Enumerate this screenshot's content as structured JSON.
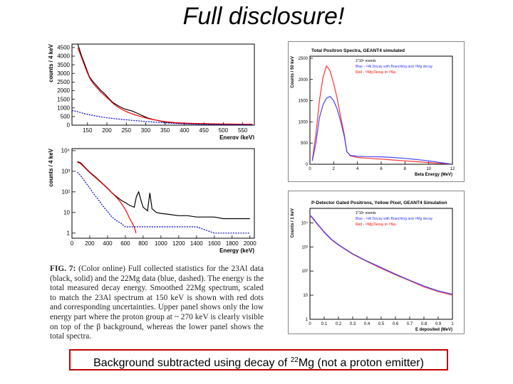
{
  "slide": {
    "title": "Full disclosure!",
    "caption": {
      "fig_label": "FIG. 7:",
      "text": "(Color online) Full collected statistics for the 23Al data (black, solid) and the 22Mg data (blue, dashed). The energy is the total measured decay energy. Smoothed 22Mg spectrum, scaled to match the 23Al spectrum at 150 keV is shown with red dots and corresponding uncertainties. Upper panel shows only the low energy part where the proton group at ~ 270 keV is clearly visible on top of the β background, whereas the lower panel shows the total spectra."
    },
    "banner": {
      "before": "Background subtracted using decay of ",
      "sup": "22",
      "after": "Mg (not a proton emitter)"
    }
  },
  "chart_data": [
    {
      "type": "line",
      "xlabel": "Energy (keV)",
      "ylabel": "counts / 4 keV",
      "xlim": [
        110,
        580
      ],
      "ylim": [
        0,
        4700
      ],
      "xticks": [
        150,
        200,
        250,
        300,
        350,
        400,
        450,
        500,
        550
      ],
      "yticks": [
        0,
        500,
        1000,
        1500,
        2000,
        2500,
        3000,
        3500,
        4000,
        4500
      ],
      "series": [
        {
          "color": "#000000",
          "x": [
            125,
            135,
            145,
            155,
            165,
            175,
            185,
            195,
            205,
            215,
            225,
            235,
            245,
            255,
            265,
            275,
            285,
            295,
            305,
            315,
            325,
            335,
            345,
            355,
            375,
            400,
            425,
            450,
            475,
            500,
            525,
            550,
            575
          ],
          "y": [
            4700,
            4000,
            3400,
            2800,
            2500,
            2250,
            2000,
            1800,
            1550,
            1320,
            1180,
            1050,
            950,
            880,
            820,
            720,
            620,
            520,
            420,
            350,
            300,
            250,
            200,
            170,
            130,
            100,
            80,
            70,
            60,
            55,
            50,
            45,
            40
          ]
        },
        {
          "color": "#ff0000",
          "x": [
            125,
            135,
            145,
            155,
            165,
            175,
            185,
            195,
            205,
            215,
            225,
            235,
            245,
            255,
            265,
            275,
            285,
            295,
            305,
            315,
            325,
            335,
            345,
            355,
            375,
            400,
            425,
            450,
            475,
            500,
            525,
            550,
            575
          ],
          "y": [
            4500,
            3900,
            3300,
            2750,
            2400,
            2150,
            1900,
            1700,
            1500,
            1280,
            1100,
            960,
            840,
            740,
            660,
            580,
            510,
            450,
            390,
            340,
            300,
            260,
            220,
            190,
            150,
            120,
            100,
            90,
            80,
            70,
            60,
            50,
            45
          ]
        },
        {
          "color": "#0000cc",
          "x": [
            110,
            125,
            140,
            155,
            170,
            185,
            200,
            220,
            240,
            260,
            280,
            300,
            320,
            340,
            360,
            400,
            450,
            500,
            550,
            575
          ],
          "y": [
            850,
            780,
            680,
            600,
            540,
            480,
            430,
            380,
            330,
            290,
            250,
            210,
            180,
            150,
            120,
            80,
            50,
            30,
            20,
            15
          ]
        }
      ]
    },
    {
      "type": "line",
      "xlabel": "Energy (keV)",
      "ylabel": "counts / 4 keV",
      "ylog": true,
      "xlim": [
        0,
        2050
      ],
      "ylim_log10": [
        -0.25,
        4.1
      ],
      "xticks": [
        0,
        200,
        400,
        600,
        800,
        1000,
        1200,
        1400,
        1600,
        1800,
        2000
      ],
      "ytick_labels": [
        "1",
        "10",
        "10²",
        "10³",
        "10⁴"
      ],
      "series": [
        {
          "color": "#000000",
          "x": [
            60,
            100,
            150,
            200,
            250,
            300,
            350,
            400,
            450,
            500,
            550,
            600,
            650,
            700,
            725,
            750,
            775,
            800,
            850,
            875,
            900,
            950,
            1000,
            1100,
            1200,
            1300,
            1400,
            1500,
            1600,
            1700,
            1800,
            1900,
            2000
          ],
          "y": [
            3000,
            2500,
            1500,
            900,
            600,
            380,
            240,
            150,
            90,
            60,
            40,
            30,
            22,
            18,
            60,
            100,
            40,
            18,
            12,
            90,
            15,
            10,
            9,
            8,
            7,
            7,
            6,
            6,
            6,
            5,
            5,
            5,
            5
          ]
        },
        {
          "color": "#ff0000",
          "x": [
            60,
            100,
            150,
            200,
            250,
            300,
            350,
            400,
            450,
            500,
            550,
            600,
            650,
            700,
            720
          ],
          "y": [
            2800,
            2300,
            1400,
            850,
            560,
            360,
            230,
            145,
            88,
            55,
            30,
            14,
            5,
            2,
            1
          ]
        },
        {
          "color": "#0000cc",
          "x": [
            60,
            100,
            150,
            200,
            250,
            300,
            350,
            400,
            450,
            500,
            550,
            600,
            700,
            800,
            1000,
            1200,
            1400,
            1600,
            1800,
            2000
          ],
          "y": [
            900,
            600,
            300,
            150,
            75,
            40,
            20,
            11,
            6,
            4,
            3,
            2,
            2,
            2,
            2,
            2,
            2,
            1,
            1,
            1
          ]
        }
      ]
    },
    {
      "type": "line",
      "title": "Total Positron Spectra, GEANT4 simulated",
      "xlabel": "Beta Energy (MeV)",
      "ylabel": "Counts / 50 keV",
      "xlim": [
        0,
        12
      ],
      "ylim": [
        0,
        2550
      ],
      "xticks": [
        0,
        2,
        4,
        6,
        8,
        10,
        12
      ],
      "yticks": [
        0,
        500,
        1000,
        1500,
        2000,
        2500
      ],
      "legend": {
        "position": "top-right",
        "entries": [
          "1*10⁵ events",
          "Blue - ²²Al Decay with Branching and ²²Mg decay",
          "Red - ²²Mg Decay to ²²Na"
        ]
      },
      "series": [
        {
          "color": "#ff3333",
          "x": [
            0.2,
            0.5,
            0.8,
            1.1,
            1.4,
            1.7,
            2.0,
            2.3,
            2.6,
            2.9,
            3.1,
            3.4,
            4,
            5,
            6,
            7,
            8,
            9,
            10,
            11,
            11.8
          ],
          "y": [
            100,
            700,
            1500,
            2050,
            2320,
            2200,
            1900,
            1550,
            1100,
            700,
            300,
            200,
            160,
            140,
            120,
            100,
            80,
            60,
            40,
            20,
            5
          ]
        },
        {
          "color": "#4444ff",
          "x": [
            0.2,
            0.5,
            0.8,
            1.1,
            1.4,
            1.7,
            2.0,
            2.3,
            2.6,
            2.9,
            3.1,
            3.4,
            4,
            5,
            6,
            7,
            8,
            9,
            10,
            11,
            11.8
          ],
          "y": [
            80,
            500,
            1100,
            1400,
            1560,
            1600,
            1500,
            1300,
            1000,
            650,
            300,
            210,
            190,
            180,
            175,
            160,
            140,
            110,
            80,
            40,
            10
          ]
        }
      ]
    },
    {
      "type": "line",
      "title": "P-Detector Gated Positrons, Yellow Pixel, GEANT4 Simulation",
      "xlabel": "E deposited (MeV)",
      "ylabel": "Counts / 1 keV",
      "ylog": true,
      "xlim": [
        0,
        1
      ],
      "ylim_log10": [
        0,
        4.6
      ],
      "xticks": [
        0,
        0.1,
        0.2,
        0.3,
        0.4,
        0.5,
        0.6,
        0.7,
        0.8,
        0.9,
        1
      ],
      "ytick_labels": [
        "1",
        "10",
        "10²",
        "10³",
        "10⁴"
      ],
      "legend": {
        "position": "top-right",
        "entries": [
          "1*10⁵ events",
          "Blue - ²²Al Decay with Branching and ²²Mg decay",
          "Red - ²²Mg Decay to ²²Na"
        ]
      },
      "series": [
        {
          "color": "#ff3333",
          "x": [
            0.0,
            0.02,
            0.05,
            0.1,
            0.15,
            0.2,
            0.3,
            0.4,
            0.5,
            0.6,
            0.7,
            0.8,
            0.9,
            1.0
          ],
          "y": [
            20000,
            15000,
            9000,
            4000,
            2000,
            1200,
            500,
            250,
            130,
            70,
            40,
            22,
            14,
            10
          ]
        },
        {
          "color": "#4444ff",
          "x": [
            0.0,
            0.02,
            0.05,
            0.1,
            0.15,
            0.2,
            0.3,
            0.4,
            0.5,
            0.6,
            0.7,
            0.8,
            0.9,
            1.0
          ],
          "y": [
            21000,
            16000,
            9500,
            4200,
            2100,
            1250,
            520,
            260,
            140,
            75,
            42,
            24,
            15,
            11
          ]
        }
      ]
    }
  ]
}
